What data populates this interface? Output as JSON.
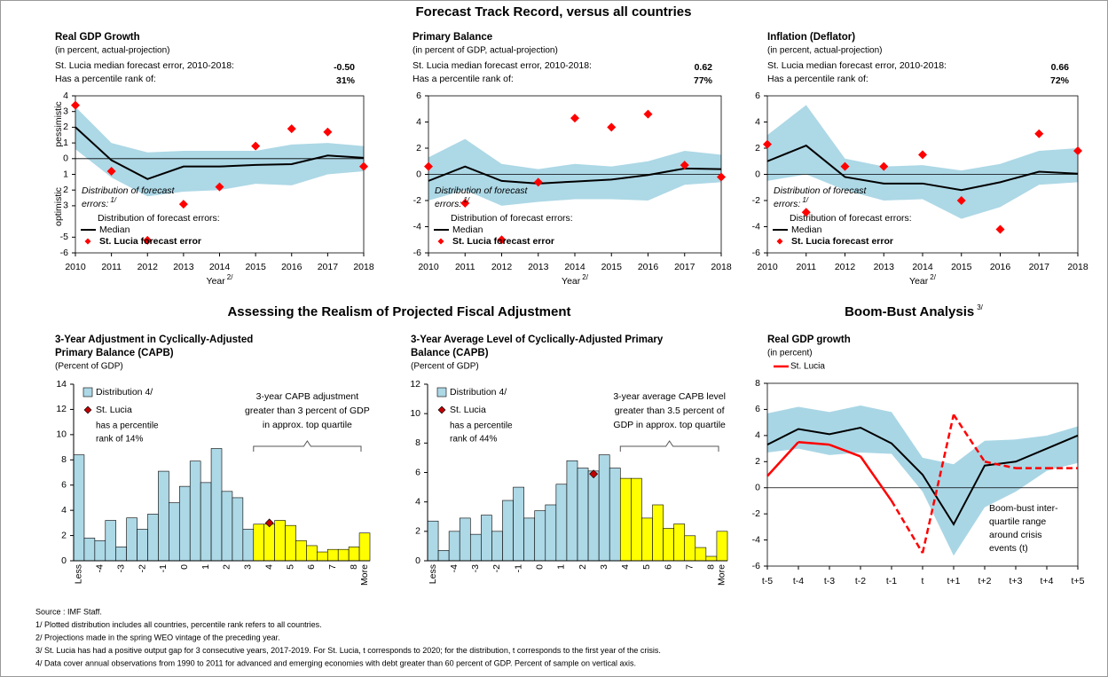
{
  "section_titles": {
    "forecast": "Forecast Track Record, versus all countries",
    "fiscal": "Assessing the Realism of Projected Fiscal Adjustment",
    "boom": "Boom-Bust Analysis",
    "boom_note": "3/"
  },
  "footnotes": [
    "Source : IMF Staff.",
    "1/ Plotted distribution includes all countries, percentile rank refers to all countries.",
    "2/ Projections made in the spring WEO vintage of the preceding year.",
    "3/ St. Lucia has had a positive output gap for 3 consecutive years, 2017-2019. For St. Lucia, t corresponds to 2020; for the distribution, t corresponds to the first year of the crisis.",
    "4/ Data cover annual observations from 1990 to 2011 for advanced and emerging economies with debt greater than 60 percent of GDP. Percent of sample on vertical axis."
  ],
  "chart_data": [
    {
      "type": "line",
      "title": "Real GDP Growth",
      "subtitle": "(in percent, actual-projection)",
      "stat_labels": [
        "St. Lucia median forecast error, 2010-2018:",
        "Has a percentile rank of:"
      ],
      "stat_values": [
        "-0.50",
        "31%"
      ],
      "ylabel_top": "pessimistic",
      "ylabel_bottom": "optimistic",
      "xlabel": "Year",
      "xlabel_note": "2/",
      "annotation": "Distribution of forecast",
      "annotation2": "errors:",
      "annotation_note": "1/",
      "legend_title": "Distribution of forecast errors:",
      "x": [
        2010,
        2011,
        2012,
        2013,
        2014,
        2015,
        2016,
        2017,
        2018
      ],
      "xlim": [
        2010,
        2018
      ],
      "xticks": [
        2010,
        2011,
        2012,
        2013,
        2014,
        2015,
        2016,
        2017,
        2018
      ],
      "ylim": [
        -6,
        4
      ],
      "yticks": [
        -6,
        -5,
        {
          "value": -3,
          "label": "3"
        },
        {
          "value": -2,
          "label": "2"
        },
        {
          "value": -1,
          "label": "1"
        },
        0,
        1,
        2,
        3,
        4
      ],
      "band": {
        "color": "#add8e6",
        "upper": [
          3.3,
          1.0,
          0.4,
          0.5,
          0.5,
          0.5,
          0.9,
          1.0,
          0.8
        ],
        "lower": [
          0.6,
          -1.2,
          -2.4,
          -2.1,
          -2.0,
          -1.6,
          -1.7,
          -1.0,
          -0.8
        ]
      },
      "series": [
        {
          "name": "Median",
          "color": "#000000",
          "style": "line",
          "values": [
            2.0,
            -0.1,
            -1.3,
            -0.5,
            -0.5,
            -0.4,
            -0.35,
            0.2,
            0.05
          ]
        },
        {
          "name": "St. Lucia forecast error",
          "color": "#ff0000",
          "style": "marker",
          "values": [
            3.4,
            -0.8,
            -5.2,
            -2.9,
            -1.8,
            0.8,
            1.9,
            1.7,
            -0.5
          ]
        }
      ]
    },
    {
      "type": "line",
      "title": "Primary Balance",
      "subtitle": "(in percent of GDP, actual-projection)",
      "stat_labels": [
        "St. Lucia median forecast error, 2010-2018:",
        "Has a percentile rank of:"
      ],
      "stat_values": [
        "0.62",
        "77%"
      ],
      "xlabel": "Year",
      "xlabel_note": "2/",
      "annotation": "Distribution of forecast",
      "annotation2": "errors:",
      "annotation_note": "1/",
      "legend_title": "Distribution of forecast errors:",
      "x": [
        2010,
        2011,
        2012,
        2013,
        2014,
        2015,
        2016,
        2017,
        2018
      ],
      "xlim": [
        2010,
        2018
      ],
      "xticks": [
        2010,
        2011,
        2012,
        2013,
        2014,
        2015,
        2016,
        2017,
        2018
      ],
      "ylim": [
        -6,
        6
      ],
      "yticks": [
        -6,
        -4,
        -2,
        0,
        2,
        4,
        6
      ],
      "band": {
        "color": "#add8e6",
        "upper": [
          1.3,
          2.7,
          0.8,
          0.4,
          0.8,
          0.6,
          1.0,
          1.8,
          1.5
        ],
        "lower": [
          -2.0,
          -1.2,
          -2.4,
          -2.1,
          -1.9,
          -1.9,
          -2.0,
          -0.8,
          -0.6
        ]
      },
      "series": [
        {
          "name": "Median",
          "color": "#000000",
          "style": "line",
          "values": [
            -0.5,
            0.6,
            -0.5,
            -0.7,
            -0.55,
            -0.4,
            -0.05,
            0.45,
            0.4
          ]
        },
        {
          "name": "St. Lucia forecast error",
          "color": "#ff0000",
          "style": "marker",
          "values": [
            0.6,
            -2.2,
            -5.0,
            -0.6,
            4.3,
            3.6,
            4.6,
            0.7,
            -0.2
          ]
        }
      ]
    },
    {
      "type": "line",
      "title": "Inflation (Deflator)",
      "subtitle": "(in percent, actual-projection)",
      "stat_labels": [
        "St. Lucia median forecast error, 2010-2018:",
        "Has a percentile rank of:"
      ],
      "stat_values": [
        "0.66",
        "72%"
      ],
      "xlabel": "Year",
      "xlabel_note": "2/",
      "annotation": "Distribution of forecast",
      "annotation2": "errors:",
      "annotation_note": "1/",
      "legend_title": "Distribution of forecast errors:",
      "x": [
        2010,
        2011,
        2012,
        2013,
        2014,
        2015,
        2016,
        2017,
        2018
      ],
      "xlim": [
        2010,
        2018
      ],
      "xticks": [
        2010,
        2011,
        2012,
        2013,
        2014,
        2015,
        2016,
        2017,
        2018
      ],
      "ylim": [
        -6,
        6
      ],
      "yticks": [
        -6,
        -4,
        -2,
        0,
        2,
        4,
        6
      ],
      "band": {
        "color": "#add8e6",
        "upper": [
          3.0,
          5.3,
          1.2,
          0.6,
          0.7,
          0.3,
          0.8,
          1.8,
          2.0
        ],
        "lower": [
          -0.5,
          0.0,
          -1.2,
          -2.0,
          -1.9,
          -3.4,
          -2.5,
          -0.8,
          -0.6
        ]
      },
      "series": [
        {
          "name": "Median",
          "color": "#000000",
          "style": "line",
          "values": [
            1.0,
            2.2,
            -0.2,
            -0.7,
            -0.7,
            -1.2,
            -0.6,
            0.2,
            0.05
          ]
        },
        {
          "name": "St. Lucia forecast error",
          "color": "#ff0000",
          "style": "marker",
          "values": [
            2.3,
            -2.9,
            0.6,
            0.6,
            1.5,
            -2.0,
            -4.2,
            3.1,
            1.8
          ]
        }
      ]
    },
    {
      "type": "bar",
      "title_lines": [
        "3-Year Adjustment in Cyclically-Adjusted",
        "Primary Balance (CAPB)"
      ],
      "subtitle": "(Percent of GDP)",
      "categories": [
        "Less",
        null,
        "-4",
        null,
        "-3",
        null,
        "-2",
        null,
        "-1",
        null,
        "0",
        null,
        "1",
        null,
        "2",
        null,
        "3",
        null,
        "4",
        null,
        "5",
        null,
        "6",
        null,
        "7",
        null,
        "8",
        "More"
      ],
      "ylim": [
        0,
        14
      ],
      "yticks": [
        0,
        2,
        4,
        6,
        8,
        10,
        12,
        14
      ],
      "series": [
        {
          "name": "Distribution 4/",
          "color": "#add8e6",
          "values": [
            8.4,
            1.8,
            1.6,
            3.2,
            1.1,
            3.4,
            2.5,
            3.7,
            7.1,
            4.6,
            5.9,
            7.9,
            6.2,
            8.9,
            5.5,
            5.0,
            2.5,
            2.9,
            2.9,
            3.2,
            2.8,
            1.6,
            1.2,
            0.7,
            0.9,
            0.9,
            1.1,
            2.2
          ]
        }
      ],
      "colors": [
        "#add8e6",
        "#add8e6",
        "#add8e6",
        "#add8e6",
        "#add8e6",
        "#add8e6",
        "#add8e6",
        "#add8e6",
        "#add8e6",
        "#add8e6",
        "#add8e6",
        "#add8e6",
        "#add8e6",
        "#add8e6",
        "#add8e6",
        "#add8e6",
        "#add8e6",
        "#ffff00",
        "#ffff00",
        "#ffff00",
        "#ffff00",
        "#ffff00",
        "#ffff00",
        "#ffff00",
        "#ffff00",
        "#ffff00",
        "#ffff00",
        "#ffff00"
      ],
      "markers": {
        "name": "St. Lucia",
        "color": "#c00000",
        "values": [
          null,
          null,
          null,
          null,
          null,
          null,
          null,
          null,
          null,
          null,
          null,
          null,
          null,
          null,
          null,
          null,
          null,
          null,
          3.0,
          null,
          null,
          null,
          null,
          null,
          null,
          null,
          null,
          null
        ]
      },
      "legend_notes": [
        "has a percentile",
        "rank of  14%"
      ],
      "bracket_text": [
        "3-year CAPB adjustment",
        "greater than 3 percent of GDP",
        "in approx. top quartile"
      ]
    },
    {
      "type": "bar",
      "title_lines": [
        "3-Year Average Level of Cyclically-Adjusted Primary",
        "Balance (CAPB)"
      ],
      "subtitle": "(Percent of GDP)",
      "categories": [
        "Less",
        null,
        "-4",
        null,
        "-3",
        null,
        "-2",
        null,
        "-1",
        null,
        "0",
        null,
        "1",
        null,
        "2",
        null,
        "3",
        null,
        "4",
        null,
        "5",
        null,
        "6",
        null,
        "7",
        null,
        "8",
        "More"
      ],
      "ylim": [
        0,
        12
      ],
      "yticks": [
        0,
        2,
        4,
        6,
        8,
        10,
        12
      ],
      "series": [
        {
          "name": "Distribution 4/",
          "color": "#add8e6",
          "values": [
            2.7,
            0.7,
            2.0,
            2.9,
            1.8,
            3.1,
            2.0,
            4.1,
            5.0,
            2.9,
            3.4,
            3.8,
            5.2,
            6.8,
            6.3,
            6.1,
            7.2,
            6.3,
            5.6,
            5.6,
            2.9,
            3.8,
            2.2,
            2.5,
            1.7,
            0.9,
            0.3,
            2.0
          ]
        }
      ],
      "colors": [
        "#add8e6",
        "#add8e6",
        "#add8e6",
        "#add8e6",
        "#add8e6",
        "#add8e6",
        "#add8e6",
        "#add8e6",
        "#add8e6",
        "#add8e6",
        "#add8e6",
        "#add8e6",
        "#add8e6",
        "#add8e6",
        "#add8e6",
        "#add8e6",
        "#add8e6",
        "#add8e6",
        "#ffff00",
        "#ffff00",
        "#ffff00",
        "#ffff00",
        "#ffff00",
        "#ffff00",
        "#ffff00",
        "#ffff00",
        "#ffff00",
        "#ffff00"
      ],
      "markers": {
        "name": "St. Lucia",
        "color": "#c00000",
        "values": [
          null,
          null,
          null,
          null,
          null,
          null,
          null,
          null,
          null,
          null,
          null,
          null,
          null,
          null,
          null,
          5.9,
          null,
          null,
          null,
          null,
          null,
          null,
          null,
          null,
          null,
          null,
          null,
          null
        ]
      },
      "legend_notes": [
        "has a percentile",
        "rank of  44%"
      ],
      "bracket_text": [
        "3-year average CAPB level",
        "greater than 3.5 percent of",
        "GDP in approx. top quartile"
      ]
    },
    {
      "type": "line",
      "title": "Real GDP growth",
      "subtitle": "(in percent)",
      "categories": [
        "t-5",
        "t-4",
        "t-3",
        "t-2",
        "t-1",
        "t",
        "t+1",
        "t+2",
        "t+3",
        "t+4",
        "t+5"
      ],
      "ylim": [
        -6,
        8
      ],
      "yticks": [
        -6,
        -4,
        -2,
        0,
        2,
        4,
        6,
        8
      ],
      "band": {
        "color": "#a9d6e5",
        "upper": [
          5.7,
          6.2,
          5.8,
          6.3,
          5.8,
          2.3,
          1.8,
          3.6,
          3.7,
          4.0,
          4.7
        ],
        "lower": [
          2.7,
          3.0,
          2.5,
          2.7,
          2.6,
          -0.3,
          -5.2,
          -1.5,
          -0.3,
          1.3,
          1.9
        ]
      },
      "series": [
        {
          "color": "#000000",
          "style": "line",
          "values": [
            3.3,
            4.5,
            4.1,
            4.6,
            3.4,
            1.0,
            -2.8,
            1.7,
            2.0,
            3.0,
            4.0
          ]
        },
        {
          "name": "St. Lucia",
          "color": "#ff0000",
          "style": "line",
          "dashed_from": "t-1",
          "values": [
            0.9,
            3.5,
            3.3,
            2.4,
            -1.0,
            -5.0,
            5.6,
            2.0,
            1.5,
            1.5,
            1.5
          ]
        }
      ],
      "annotation_lines": [
        "Boom-bust inter-",
        "quartile range",
        "around crisis",
        "events (t)"
      ],
      "annotation_color": "#4f9fc8"
    }
  ]
}
